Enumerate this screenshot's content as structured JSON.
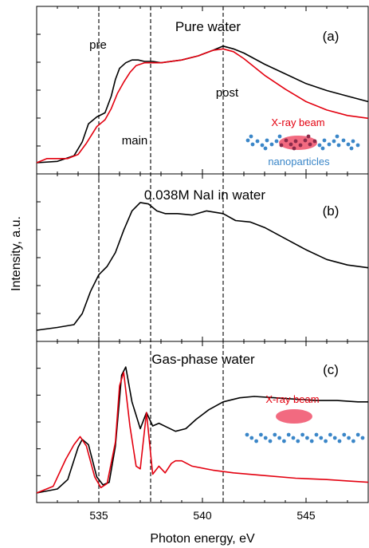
{
  "chart_data": {
    "type": "line",
    "xlabel": "Photon energy, eV",
    "ylabel": "Intensity, a.u.",
    "xlim": [
      532,
      548
    ],
    "shared_x_ticks": [
      535,
      540,
      545
    ],
    "colors": {
      "black": "#000000",
      "red": "#e3000f",
      "blue": "#3a86c8",
      "ellipse": "#f0506a"
    },
    "markers": [
      {
        "x": 535.0,
        "label": "pre"
      },
      {
        "x": 537.5,
        "label": "main"
      },
      {
        "x": 541.0,
        "label": "post"
      }
    ],
    "panels": [
      {
        "title": "Pure water",
        "tag": "(a)",
        "ylim": [
          0,
          1.0
        ],
        "annotations": {
          "beam_label": "X-ray beam",
          "particles_label": "nanoparticles"
        },
        "series": [
          {
            "color": "#000000",
            "x": [
              532.0,
              533.0,
              533.8,
              534.2,
              534.5,
              534.9,
              535.3,
              535.6,
              535.8,
              536.0,
              536.3,
              536.6,
              536.9,
              537.2,
              537.6,
              538.0,
              539.0,
              539.8,
              540.5,
              541.0,
              541.5,
              542.0,
              543.0,
              544.0,
              545.0,
              546.0,
              547.0,
              548.0
            ],
            "y": [
              0.0,
              0.01,
              0.05,
              0.15,
              0.28,
              0.33,
              0.36,
              0.48,
              0.6,
              0.68,
              0.72,
              0.74,
              0.74,
              0.73,
              0.73,
              0.72,
              0.74,
              0.77,
              0.81,
              0.84,
              0.82,
              0.79,
              0.71,
              0.64,
              0.57,
              0.52,
              0.48,
              0.44
            ]
          },
          {
            "color": "#e3000f",
            "x": [
              532.0,
              532.5,
              533.0,
              533.5,
              534.0,
              534.4,
              534.9,
              535.3,
              535.6,
              535.9,
              536.2,
              536.5,
              536.8,
              537.2,
              537.6,
              538.0,
              539.0,
              539.8,
              540.5,
              541.0,
              541.5,
              542.0,
              543.0,
              544.0,
              545.0,
              546.0,
              547.0,
              548.0
            ],
            "y": [
              0.0,
              0.03,
              0.03,
              0.03,
              0.06,
              0.14,
              0.26,
              0.31,
              0.39,
              0.5,
              0.58,
              0.65,
              0.7,
              0.72,
              0.72,
              0.72,
              0.74,
              0.77,
              0.81,
              0.82,
              0.8,
              0.75,
              0.63,
              0.53,
              0.44,
              0.38,
              0.34,
              0.32
            ]
          }
        ]
      },
      {
        "title": "0.038M NaI in water",
        "tag": "(b)",
        "ylim": [
          0,
          1.0
        ],
        "series": [
          {
            "color": "#000000",
            "x": [
              532.0,
              533.0,
              533.8,
              534.2,
              534.6,
              535.0,
              535.4,
              535.8,
              536.2,
              536.6,
              537.0,
              537.4,
              537.8,
              538.2,
              538.8,
              539.5,
              540.2,
              541.0,
              541.6,
              542.3,
              543.0,
              544.0,
              545.0,
              546.0,
              547.0,
              548.0
            ],
            "y": [
              0.0,
              0.02,
              0.04,
              0.12,
              0.28,
              0.4,
              0.46,
              0.56,
              0.72,
              0.86,
              0.92,
              0.91,
              0.86,
              0.84,
              0.84,
              0.83,
              0.86,
              0.84,
              0.79,
              0.78,
              0.74,
              0.66,
              0.58,
              0.51,
              0.47,
              0.45
            ]
          }
        ]
      },
      {
        "title": "Gas-phase water",
        "tag": "(c)",
        "ylim": [
          0,
          1.0
        ],
        "annotations": {
          "beam_label": "X-ray beam"
        },
        "series": [
          {
            "color": "#000000",
            "x": [
              532.0,
              533.0,
              533.5,
              534.0,
              534.2,
              534.5,
              534.9,
              535.2,
              535.5,
              535.8,
              536.1,
              536.3,
              536.6,
              537.0,
              537.3,
              537.6,
              537.9,
              538.3,
              538.7,
              539.2,
              539.7,
              540.3,
              541.0,
              541.8,
              542.5,
              543.5,
              544.5,
              545.5,
              546.5,
              547.5,
              548.0
            ],
            "y": [
              0.0,
              0.03,
              0.1,
              0.34,
              0.4,
              0.36,
              0.12,
              0.06,
              0.08,
              0.35,
              0.88,
              0.94,
              0.68,
              0.48,
              0.6,
              0.5,
              0.52,
              0.49,
              0.46,
              0.48,
              0.55,
              0.62,
              0.68,
              0.71,
              0.72,
              0.71,
              0.7,
              0.69,
              0.69,
              0.68,
              0.68
            ]
          },
          {
            "color": "#e3000f",
            "x": [
              532.0,
              532.8,
              533.4,
              533.8,
              534.1,
              534.4,
              534.8,
              535.1,
              535.4,
              535.8,
              536.0,
              536.2,
              536.5,
              536.8,
              537.0,
              537.3,
              537.6,
              537.9,
              538.2,
              538.5,
              538.7,
              539.0,
              539.5,
              540.5,
              541.5,
              543.0,
              544.5,
              546.0,
              547.0,
              548.0
            ],
            "y": [
              0.0,
              0.05,
              0.25,
              0.36,
              0.42,
              0.35,
              0.12,
              0.04,
              0.07,
              0.38,
              0.8,
              0.9,
              0.5,
              0.2,
              0.18,
              0.6,
              0.14,
              0.2,
              0.15,
              0.22,
              0.24,
              0.24,
              0.2,
              0.17,
              0.15,
              0.13,
              0.11,
              0.1,
              0.09,
              0.08
            ]
          }
        ]
      }
    ]
  }
}
